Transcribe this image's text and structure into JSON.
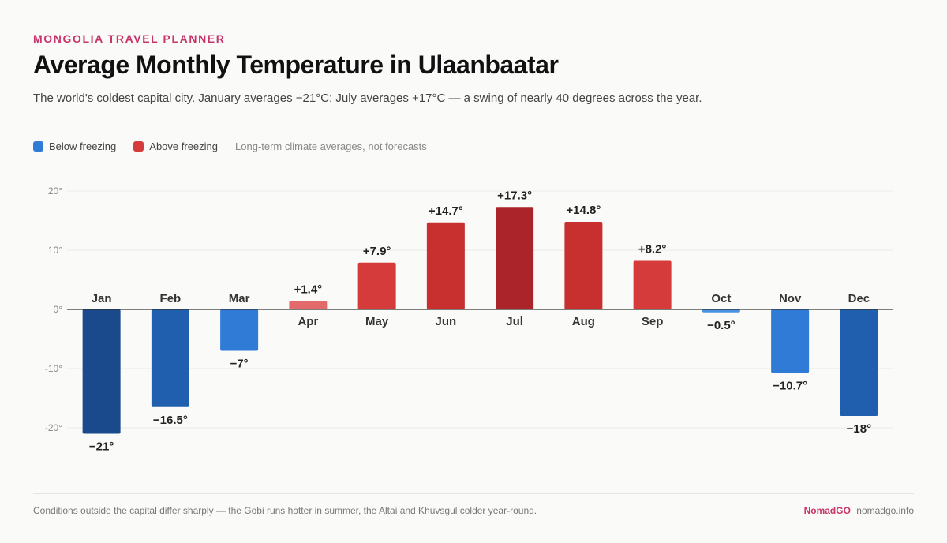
{
  "header": {
    "eyebrow": "MONGOLIA TRAVEL PLANNER",
    "title": "Average Monthly Temperature in Ulaanbaatar",
    "subtitle": "The world's coldest capital city. January averages −21°C; July averages +17°C — a swing of nearly 40 degrees across the year."
  },
  "legend": {
    "below_label": "Below freezing",
    "above_label": "Above freezing",
    "note": "Long-term climate averages, not forecasts",
    "below_color": "#2f7bd6",
    "above_color": "#d63b3b"
  },
  "chart_data": {
    "type": "bar",
    "categories": [
      "Jan",
      "Feb",
      "Mar",
      "Apr",
      "May",
      "Jun",
      "Jul",
      "Aug",
      "Sep",
      "Oct",
      "Nov",
      "Dec"
    ],
    "values": [
      -21,
      -16.5,
      -7,
      1.4,
      7.9,
      14.7,
      17.3,
      14.8,
      8.2,
      -0.5,
      -10.7,
      -18
    ],
    "data_labels": [
      "−21°",
      "−16.5°",
      "−7°",
      "+1.4°",
      "+7.9°",
      "+14.7°",
      "+17.3°",
      "+14.8°",
      "+8.2°",
      "−0.5°",
      "−10.7°",
      "−18°"
    ],
    "y_ticks": [
      20,
      10,
      0,
      -10,
      -20
    ],
    "y_tick_labels": [
      "20°",
      "10°",
      "0°",
      "-10°",
      "-20°"
    ],
    "ylim": [
      -20,
      20
    ],
    "grid": true,
    "colors": [
      "#1a4a8c",
      "#1f5fae",
      "#2f7bd6",
      "#e36a6a",
      "#d63b3b",
      "#c8302f",
      "#aa2429",
      "#c8302f",
      "#d63b3b",
      "#4a92e3",
      "#2f7bd6",
      "#1f5fae"
    ]
  },
  "footer": {
    "note": "Conditions outside the capital differ sharply — the Gobi runs hotter in summer, the Altai and Khuvsgul colder year-round.",
    "brand": "NomadGO",
    "site": "nomadgo.info"
  }
}
